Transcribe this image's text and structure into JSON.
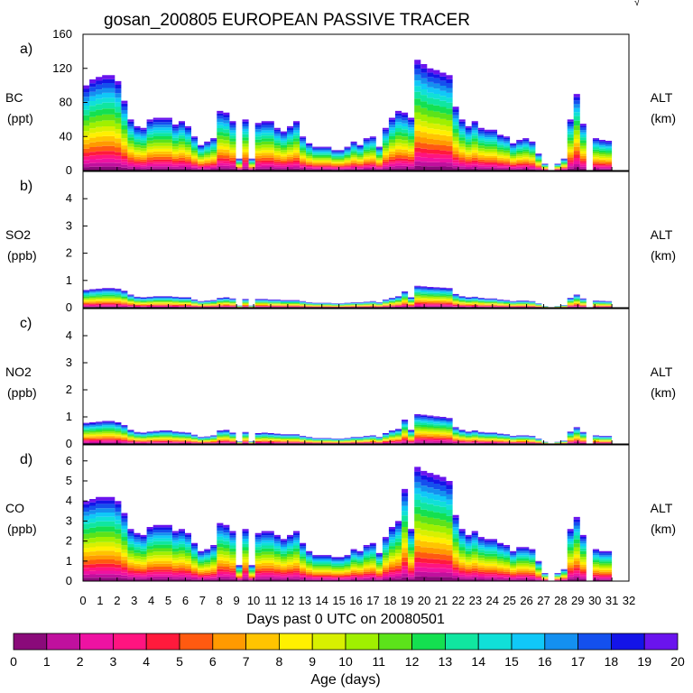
{
  "title": "gosan_200805 EUROPEAN PASSIVE TRACER",
  "corner_mark": "√",
  "colors": {
    "age_palette": [
      "#8a0a7a",
      "#c0109e",
      "#ee12a2",
      "#ff1480",
      "#ff1a3c",
      "#ff5a10",
      "#ff9a00",
      "#ffc400",
      "#fff000",
      "#d8f000",
      "#a0f000",
      "#5ce31a",
      "#14e050",
      "#10e6a0",
      "#10e0d8",
      "#10c8f8",
      "#1490f0",
      "#1450ee",
      "#1414e8",
      "#6a14ee"
    ]
  },
  "chart_data": [
    {
      "type": "area",
      "panel_label": "a)",
      "species": "BC",
      "unit": "(ppt)",
      "right_label": "ALT",
      "right_unit": "(km)",
      "ylim": [
        0,
        160
      ],
      "yticks": [
        "0",
        "40",
        "80",
        "120",
        "160"
      ],
      "xlim": [
        0,
        32
      ],
      "totals": [
        100,
        107,
        110,
        112,
        112,
        105,
        82,
        60,
        52,
        50,
        60,
        62,
        62,
        62,
        54,
        58,
        52,
        40,
        30,
        34,
        38,
        70,
        68,
        58,
        14,
        60,
        14,
        56,
        58,
        58,
        50,
        46,
        52,
        58,
        40,
        32,
        28,
        28,
        28,
        24,
        24,
        28,
        34,
        30,
        38,
        40,
        28,
        50,
        62,
        70,
        68,
        62,
        130,
        125,
        120,
        118,
        115,
        112,
        75,
        60,
        52,
        58,
        50,
        48,
        48,
        42,
        40,
        32,
        36,
        38,
        34,
        20,
        8,
        0,
        8,
        14,
        60,
        90,
        55,
        0,
        38,
        36,
        35
      ],
      "age_profile": [
        0.04,
        0.04,
        0.04,
        0.04,
        0.04,
        0.05,
        0.05,
        0.05,
        0.05,
        0.05,
        0.06,
        0.06,
        0.06,
        0.06,
        0.05,
        0.05,
        0.05,
        0.05,
        0.04,
        0.04
      ]
    },
    {
      "type": "area",
      "panel_label": "b)",
      "species": "SO2",
      "unit": "(ppb)",
      "right_label": "ALT",
      "right_unit": "(km)",
      "ylim": [
        0,
        5
      ],
      "yticks": [
        "0",
        "1",
        "2",
        "3",
        "4"
      ],
      "xlim": [
        0,
        32
      ],
      "totals": [
        0.65,
        0.68,
        0.7,
        0.72,
        0.72,
        0.7,
        0.62,
        0.48,
        0.4,
        0.38,
        0.4,
        0.42,
        0.42,
        0.42,
        0.4,
        0.38,
        0.38,
        0.3,
        0.24,
        0.26,
        0.28,
        0.36,
        0.38,
        0.34,
        0.08,
        0.32,
        0.08,
        0.32,
        0.32,
        0.3,
        0.3,
        0.28,
        0.28,
        0.28,
        0.24,
        0.2,
        0.18,
        0.18,
        0.18,
        0.16,
        0.16,
        0.18,
        0.2,
        0.2,
        0.22,
        0.24,
        0.2,
        0.3,
        0.36,
        0.42,
        0.6,
        0.38,
        0.8,
        0.78,
        0.76,
        0.75,
        0.74,
        0.72,
        0.5,
        0.42,
        0.38,
        0.4,
        0.36,
        0.34,
        0.34,
        0.3,
        0.28,
        0.24,
        0.26,
        0.26,
        0.24,
        0.16,
        0.06,
        0,
        0.06,
        0.1,
        0.36,
        0.48,
        0.34,
        0,
        0.26,
        0.25,
        0.24
      ],
      "age_profile": [
        0.04,
        0.04,
        0.04,
        0.04,
        0.04,
        0.05,
        0.05,
        0.05,
        0.05,
        0.05,
        0.06,
        0.06,
        0.06,
        0.06,
        0.05,
        0.05,
        0.05,
        0.05,
        0.04,
        0.04
      ]
    },
    {
      "type": "area",
      "panel_label": "c)",
      "species": "NO2",
      "unit": "(ppb)",
      "right_label": "ALT",
      "right_unit": "(km)",
      "ylim": [
        0,
        5
      ],
      "yticks": [
        "0",
        "1",
        "2",
        "3",
        "4"
      ],
      "xlim": [
        0,
        32
      ],
      "totals": [
        0.78,
        0.8,
        0.82,
        0.85,
        0.85,
        0.8,
        0.7,
        0.52,
        0.44,
        0.42,
        0.46,
        0.48,
        0.5,
        0.5,
        0.46,
        0.44,
        0.42,
        0.34,
        0.26,
        0.28,
        0.32,
        0.5,
        0.52,
        0.42,
        0.1,
        0.44,
        0.1,
        0.4,
        0.42,
        0.4,
        0.38,
        0.36,
        0.36,
        0.36,
        0.3,
        0.26,
        0.22,
        0.22,
        0.22,
        0.2,
        0.2,
        0.22,
        0.26,
        0.26,
        0.3,
        0.32,
        0.26,
        0.4,
        0.5,
        0.56,
        0.9,
        0.52,
        1.1,
        1.08,
        1.05,
        1.02,
        1.0,
        0.96,
        0.62,
        0.52,
        0.46,
        0.5,
        0.44,
        0.42,
        0.42,
        0.38,
        0.36,
        0.3,
        0.32,
        0.32,
        0.3,
        0.2,
        0.08,
        0,
        0.08,
        0.12,
        0.46,
        0.62,
        0.44,
        0,
        0.32,
        0.3,
        0.3
      ],
      "age_profile": [
        0.04,
        0.04,
        0.04,
        0.04,
        0.04,
        0.05,
        0.05,
        0.05,
        0.05,
        0.05,
        0.06,
        0.06,
        0.06,
        0.06,
        0.05,
        0.05,
        0.05,
        0.05,
        0.04,
        0.04
      ]
    },
    {
      "type": "area",
      "panel_label": "d)",
      "species": "CO",
      "unit": "(ppb)",
      "right_label": "ALT",
      "right_unit": "(km)",
      "ylim": [
        0,
        6.8
      ],
      "yticks": [
        "0",
        "1",
        "2",
        "3",
        "4",
        "5",
        "6"
      ],
      "xlim": [
        0,
        32
      ],
      "totals": [
        4.0,
        4.1,
        4.2,
        4.2,
        4.2,
        4.0,
        3.4,
        2.6,
        2.4,
        2.3,
        2.7,
        2.8,
        2.8,
        2.8,
        2.5,
        2.6,
        2.4,
        1.9,
        1.5,
        1.6,
        1.8,
        2.9,
        2.8,
        2.5,
        0.8,
        2.6,
        0.8,
        2.4,
        2.5,
        2.5,
        2.3,
        2.1,
        2.3,
        2.5,
        1.9,
        1.5,
        1.3,
        1.3,
        1.3,
        1.2,
        1.2,
        1.3,
        1.6,
        1.5,
        1.8,
        1.9,
        1.4,
        2.2,
        2.7,
        3.0,
        4.6,
        2.6,
        5.7,
        5.5,
        5.4,
        5.3,
        5.2,
        5.0,
        3.3,
        2.6,
        2.3,
        2.5,
        2.2,
        2.1,
        2.1,
        1.9,
        1.8,
        1.5,
        1.7,
        1.7,
        1.6,
        1.0,
        0.4,
        0,
        0.4,
        0.6,
        2.6,
        3.2,
        2.3,
        0,
        1.6,
        1.5,
        1.5
      ],
      "age_profile": [
        0.04,
        0.04,
        0.04,
        0.04,
        0.04,
        0.05,
        0.05,
        0.05,
        0.05,
        0.05,
        0.06,
        0.06,
        0.06,
        0.06,
        0.05,
        0.05,
        0.05,
        0.05,
        0.04,
        0.04
      ]
    }
  ],
  "x_axis": {
    "label": "Days past 0 UTC on 20080501",
    "ticks": [
      "0",
      "1",
      "2",
      "3",
      "4",
      "5",
      "6",
      "7",
      "8",
      "9",
      "10",
      "11",
      "12",
      "13",
      "14",
      "15",
      "16",
      "17",
      "18",
      "19",
      "20",
      "21",
      "22",
      "23",
      "24",
      "25",
      "26",
      "27",
      "28",
      "29",
      "30",
      "31",
      "32"
    ]
  },
  "colorbar": {
    "label": "Age (days)",
    "ticks": [
      "0",
      "1",
      "2",
      "3",
      "4",
      "5",
      "6",
      "7",
      "8",
      "9",
      "10",
      "11",
      "12",
      "13",
      "14",
      "15",
      "16",
      "17",
      "18",
      "19",
      "20"
    ]
  }
}
